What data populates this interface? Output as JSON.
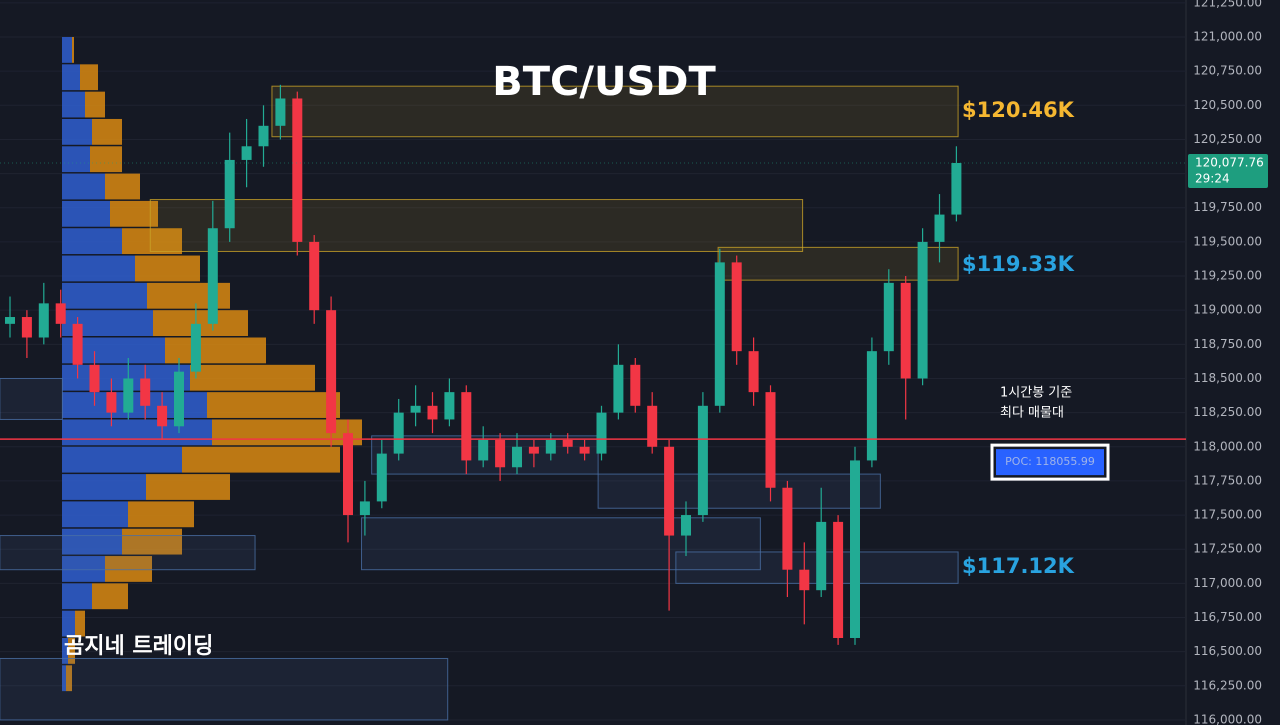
{
  "chart_data": {
    "type": "candlestick",
    "title": "BTC/USDT",
    "watermark": "곰지네 트레이딩",
    "ylim": [
      115963,
      121271
    ],
    "yticks": [
      {
        "value": 116000,
        "label": "116,000.00"
      },
      {
        "value": 116250,
        "label": "116,250.00"
      },
      {
        "value": 116500,
        "label": "116,500.00"
      },
      {
        "value": 116750,
        "label": "116,750.00"
      },
      {
        "value": 117000,
        "label": "117,000.00"
      },
      {
        "value": 117250,
        "label": "117,250.00"
      },
      {
        "value": 117500,
        "label": "117,500.00"
      },
      {
        "value": 117750,
        "label": "117,750.00"
      },
      {
        "value": 118000,
        "label": "118,000.00"
      },
      {
        "value": 118250,
        "label": "118,250.00"
      },
      {
        "value": 118500,
        "label": "118,500.00"
      },
      {
        "value": 118750,
        "label": "118,750.00"
      },
      {
        "value": 119000,
        "label": "119,000.00"
      },
      {
        "value": 119250,
        "label": "119,250.00"
      },
      {
        "value": 119500,
        "label": "119,500.00"
      },
      {
        "value": 119750,
        "label": "119,750.00"
      },
      {
        "value": 120000,
        "label": "120,000.00"
      },
      {
        "value": 120250,
        "label": "120,250.00"
      },
      {
        "value": 120500,
        "label": "120,500.00"
      },
      {
        "value": 120750,
        "label": "120,750.00"
      },
      {
        "value": 121000,
        "label": "121,000.00"
      },
      {
        "value": 121250,
        "label": "121,250.00"
      }
    ],
    "grid": true,
    "up_color": "#22ab94",
    "down_color": "#f23645",
    "ohlc": [
      [
        118900,
        119100,
        118800,
        118950
      ],
      [
        118950,
        119000,
        118650,
        118800
      ],
      [
        118800,
        119200,
        118750,
        119050
      ],
      [
        119050,
        119150,
        118800,
        118900
      ],
      [
        118900,
        118950,
        118500,
        118600
      ],
      [
        118600,
        118700,
        118300,
        118400
      ],
      [
        118400,
        118500,
        118150,
        118250
      ],
      [
        118250,
        118650,
        118200,
        118500
      ],
      [
        118500,
        118600,
        118200,
        118300
      ],
      [
        118300,
        118400,
        118050,
        118150
      ],
      [
        118150,
        118650,
        118100,
        118550
      ],
      [
        118550,
        119050,
        118500,
        118900
      ],
      [
        118900,
        119800,
        118850,
        119600
      ],
      [
        119600,
        120300,
        119500,
        120100
      ],
      [
        120100,
        120400,
        119900,
        120200
      ],
      [
        120200,
        120500,
        120050,
        120350
      ],
      [
        120350,
        120650,
        120250,
        120550
      ],
      [
        120550,
        120600,
        119400,
        119500
      ],
      [
        119500,
        119550,
        118900,
        119000
      ],
      [
        119000,
        119100,
        118000,
        118100
      ],
      [
        118100,
        118200,
        117300,
        117500
      ],
      [
        117500,
        117750,
        117350,
        117600
      ],
      [
        117600,
        118050,
        117550,
        117950
      ],
      [
        117950,
        118350,
        117900,
        118250
      ],
      [
        118250,
        118450,
        118150,
        118300
      ],
      [
        118300,
        118400,
        118100,
        118200
      ],
      [
        118200,
        118500,
        118150,
        118400
      ],
      [
        118400,
        118450,
        117800,
        117900
      ],
      [
        117900,
        118150,
        117850,
        118050
      ],
      [
        118050,
        118100,
        117750,
        117850
      ],
      [
        117850,
        118100,
        117800,
        118000
      ],
      [
        118000,
        118050,
        117850,
        117950
      ],
      [
        117950,
        118100,
        117900,
        118050
      ],
      [
        118050,
        118100,
        117950,
        118000
      ],
      [
        118000,
        118050,
        117900,
        117950
      ],
      [
        117950,
        118300,
        117900,
        118250
      ],
      [
        118250,
        118750,
        118200,
        118600
      ],
      [
        118600,
        118650,
        118250,
        118300
      ],
      [
        118300,
        118400,
        117950,
        118000
      ],
      [
        118000,
        118050,
        116800,
        117350
      ],
      [
        117350,
        117600,
        117200,
        117500
      ],
      [
        117500,
        118400,
        117450,
        118300
      ],
      [
        118300,
        119450,
        118250,
        119350
      ],
      [
        119350,
        119400,
        118600,
        118700
      ],
      [
        118700,
        118800,
        118300,
        118400
      ],
      [
        118400,
        118450,
        117600,
        117700
      ],
      [
        117700,
        117750,
        116900,
        117100
      ],
      [
        117100,
        117300,
        116700,
        116950
      ],
      [
        116950,
        117700,
        116900,
        117450
      ],
      [
        117450,
        117500,
        116550,
        116600
      ],
      [
        116600,
        118000,
        116550,
        117900
      ],
      [
        117900,
        118800,
        117850,
        118700
      ],
      [
        118700,
        119300,
        118600,
        119200
      ],
      [
        119200,
        119250,
        118200,
        118500
      ],
      [
        118500,
        119600,
        118450,
        119500
      ],
      [
        119500,
        119850,
        119350,
        119700
      ],
      [
        119700,
        120200,
        119650,
        120077.76
      ]
    ],
    "profile": {
      "bins": [
        121000,
        120800,
        120600,
        120400,
        120200,
        120000,
        119800,
        119600,
        119400,
        119200,
        119000,
        118800,
        118600,
        118400,
        118200,
        118000,
        117800,
        117600,
        117400,
        117200,
        117000,
        116800,
        116600,
        116400,
        116200
      ],
      "buy": [
        10,
        18,
        23,
        30,
        28,
        43,
        48,
        60,
        73,
        85,
        91,
        103,
        128,
        145,
        150,
        120,
        84,
        66,
        60,
        43,
        30,
        13,
        6,
        4
      ],
      "sell": [
        2,
        18,
        20,
        30,
        32,
        35,
        48,
        60,
        65,
        83,
        95,
        101,
        125,
        133,
        150,
        158,
        84,
        66,
        60,
        47,
        36,
        10,
        7,
        6
      ],
      "buy_color": "#2f5fd0",
      "sell_color": "#d98a12"
    },
    "zones": [
      {
        "low": 120270,
        "high": 120640,
        "start": 15.5,
        "end": 56.1,
        "color": "#c9a227"
      },
      {
        "low": 119430,
        "high": 119810,
        "start": 8.3,
        "end": 46.9,
        "color": "#c9a227"
      },
      {
        "low": 119220,
        "high": 119460,
        "start": 41.9,
        "end": 56.1,
        "color": "#c9a227"
      },
      {
        "low": 117100,
        "high": 117350,
        "start": -0.6,
        "end": 14.5,
        "color": "#4a6fa5"
      },
      {
        "low": 117100,
        "high": 117480,
        "start": 20.8,
        "end": 44.4,
        "color": "#4a6fa5"
      },
      {
        "low": 117000,
        "high": 117230,
        "start": 39.4,
        "end": 56.1,
        "color": "#4a6fa5"
      },
      {
        "low": 117800,
        "high": 118080,
        "start": 21.4,
        "end": 34.8,
        "color": "#4a6fa5"
      },
      {
        "low": 117550,
        "high": 117800,
        "start": 34.8,
        "end": 51.5,
        "color": "#4a6fa5"
      },
      {
        "low": 116000,
        "high": 116450,
        "start": -0.6,
        "end": 25.9,
        "color": "#4a6fa5"
      },
      {
        "low": 118200,
        "high": 118500,
        "start": -0.6,
        "end": 3.1,
        "color": "#4a6fa5"
      }
    ],
    "levels": [
      {
        "text": "$120.46K",
        "value": 120460,
        "color": "#f5b731"
      },
      {
        "text": "$119.33K",
        "value": 119330,
        "color": "#29a3e0"
      },
      {
        "text": "$117.12K",
        "value": 117120,
        "color": "#29a3e0"
      }
    ],
    "poc": {
      "value": 118055.99,
      "label": "POC: 118055.99",
      "note": [
        "1시간봉 기준",
        "최다 매물대"
      ],
      "color": "#f23645"
    },
    "last_price": {
      "value": 120077.76,
      "label": "120,077.76",
      "countdown": "29:24",
      "color": "#1e9e7f"
    }
  }
}
